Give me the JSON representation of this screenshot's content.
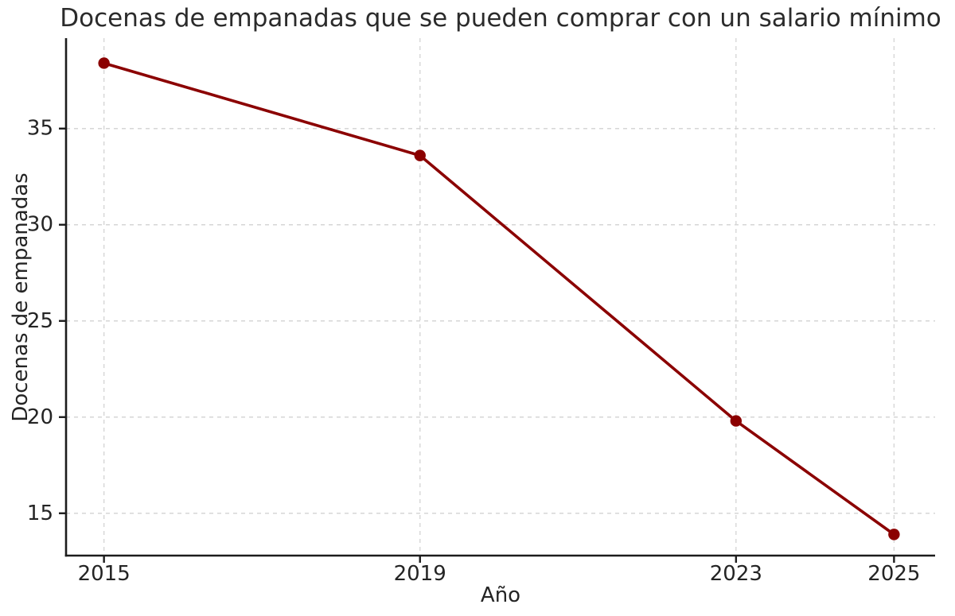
{
  "chart_data": {
    "type": "line",
    "title": "Docenas de empanadas que se pueden comprar con un salario mínimo",
    "xlabel": "Año",
    "ylabel": "Docenas de empanadas",
    "x": [
      2015,
      2019,
      2023,
      2025
    ],
    "y": [
      38.4,
      33.6,
      19.8,
      13.9
    ],
    "series_name": "Docenas de empanadas",
    "xticks": [
      2015,
      2019,
      2023,
      2025
    ],
    "yticks": [
      15,
      20,
      25,
      30,
      35
    ],
    "xlim": [
      2014.52,
      2025.52
    ],
    "ylim": [
      12.8,
      39.7
    ],
    "grid": true,
    "grid_style": "dashed",
    "legend": false,
    "colors": {
      "line": "#8B0000",
      "marker": "#8B0000",
      "grid": "#d6d6d6",
      "spine": "#1c1c1c",
      "text": "#242424",
      "background": "#ffffff"
    }
  }
}
